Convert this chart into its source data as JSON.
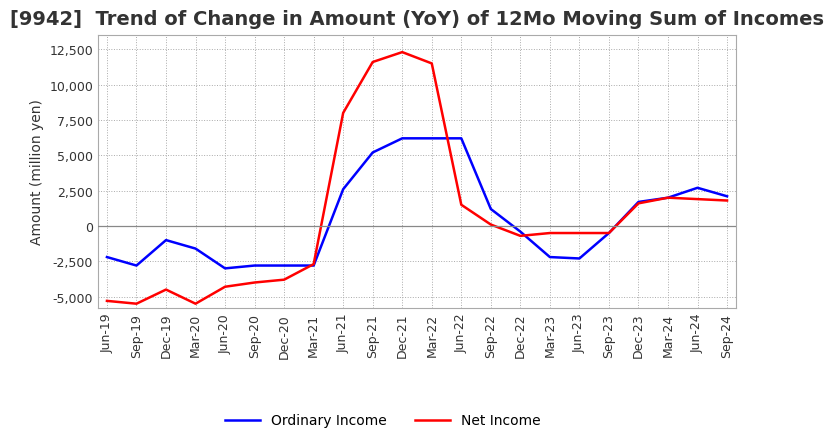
{
  "title": "[9942]  Trend of Change in Amount (YoY) of 12Mo Moving Sum of Incomes",
  "ylabel": "Amount (million yen)",
  "ylim": [
    -5800,
    13500
  ],
  "yticks": [
    -5000,
    -2500,
    0,
    2500,
    5000,
    7500,
    10000,
    12500
  ],
  "legend_labels": [
    "Ordinary Income",
    "Net Income"
  ],
  "line_colors": [
    "#0000ff",
    "#ff0000"
  ],
  "x_labels": [
    "Jun-19",
    "Sep-19",
    "Dec-19",
    "Mar-20",
    "Jun-20",
    "Sep-20",
    "Dec-20",
    "Mar-21",
    "Jun-21",
    "Sep-21",
    "Dec-21",
    "Mar-22",
    "Jun-22",
    "Sep-22",
    "Dec-22",
    "Mar-23",
    "Jun-23",
    "Sep-23",
    "Dec-23",
    "Mar-24",
    "Jun-24",
    "Sep-24"
  ],
  "ordinary_income": [
    -2200,
    -2800,
    -1000,
    -1600,
    -3000,
    -2800,
    -2800,
    -2800,
    2600,
    5200,
    6200,
    6200,
    6200,
    1200,
    -400,
    -2200,
    -2300,
    -500,
    1700,
    2000,
    2700,
    2100
  ],
  "net_income": [
    -5300,
    -5500,
    -4500,
    -5500,
    -4300,
    -4000,
    -3800,
    -2700,
    8000,
    11600,
    12300,
    11500,
    1500,
    100,
    -700,
    -500,
    -500,
    -500,
    1600,
    2000,
    1900,
    1800
  ],
  "background_color": "#ffffff",
  "plot_bg_color": "#ffffff",
  "grid_color": "#aaaaaa",
  "title_fontsize": 14,
  "label_fontsize": 10,
  "tick_fontsize": 9
}
